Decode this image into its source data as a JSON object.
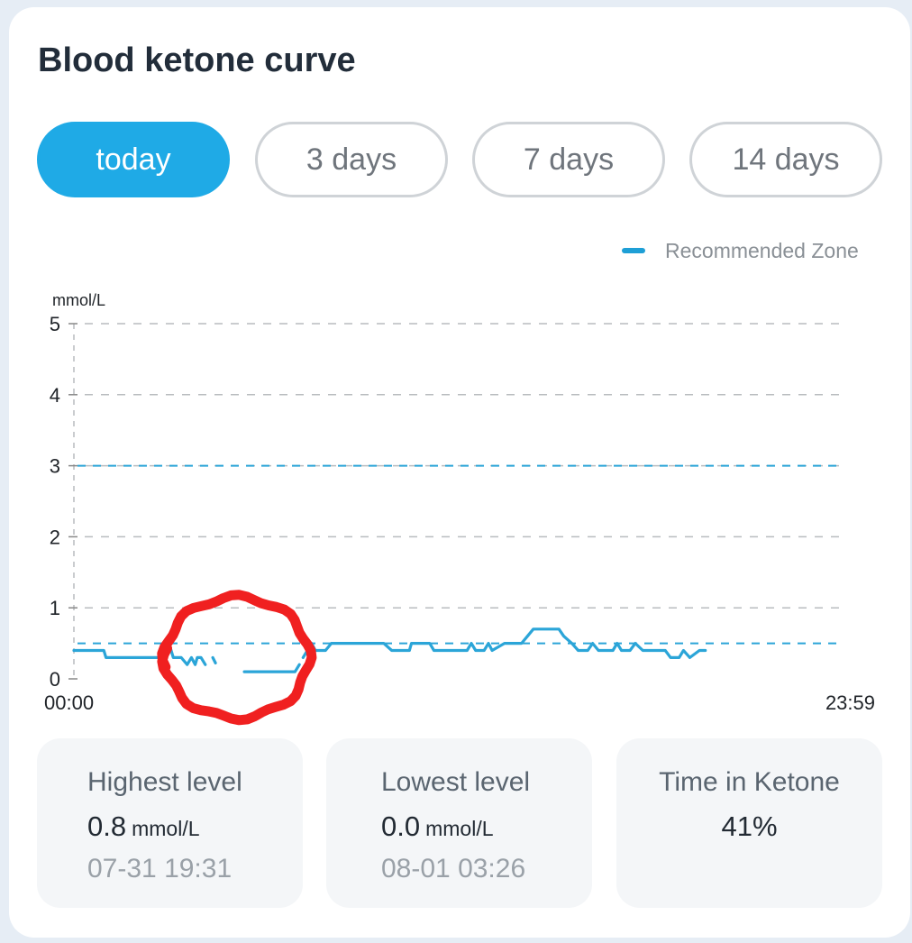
{
  "header": {
    "title": "Blood ketone curve"
  },
  "range_tabs": [
    {
      "label": "today",
      "active": true
    },
    {
      "label": "3 days",
      "active": false
    },
    {
      "label": "7 days",
      "active": false
    },
    {
      "label": "14 days",
      "active": false
    }
  ],
  "legend": {
    "label": "Recommended Zone",
    "color": "#1e9fd6"
  },
  "chart_data": {
    "type": "line",
    "ylabel": "mmol/L",
    "ylim": [
      0,
      5
    ],
    "yticks": [
      "0",
      "1",
      "2",
      "3",
      "4",
      "5"
    ],
    "xlim": [
      "00:00",
      "23:59"
    ],
    "xticks": [
      "00:00",
      "23:59"
    ],
    "grid": true,
    "recommended_zone": [
      0.5,
      3
    ],
    "line_color": "#2ba5d8",
    "annotation": {
      "type": "hand-drawn circle",
      "color": "#f02020"
    },
    "series": [
      {
        "segments": [
          [
            [
              "00:00",
              0.4
            ],
            [
              "00:56",
              0.4
            ],
            [
              "01:00",
              0.3
            ],
            [
              "02:39",
              0.3
            ],
            [
              "02:43",
              0.4
            ],
            [
              "02:58",
              0.5
            ],
            [
              "03:06",
              0.3
            ],
            [
              "03:21",
              0.3
            ],
            [
              "03:32",
              0.2
            ],
            [
              "03:40",
              0.3
            ],
            [
              "03:47",
              0.2
            ],
            [
              "03:51",
              0.3
            ],
            [
              "03:58",
              0.3
            ],
            [
              "04:06",
              0.2
            ]
          ],
          [
            [
              "04:20",
              0.3
            ]
          ],
          [
            [
              "05:19",
              0.1
            ],
            [
              "06:31",
              0.1
            ],
            [
              "06:54",
              0.1
            ],
            [
              "07:02",
              0.2
            ]
          ],
          [
            [
              "07:09",
              0.3
            ],
            [
              "07:25",
              0.5
            ],
            [
              "07:32",
              0.4
            ],
            [
              "07:51",
              0.4
            ],
            [
              "08:02",
              0.5
            ],
            [
              "09:12",
              0.5
            ],
            [
              "09:40",
              0.5
            ],
            [
              "09:55",
              0.4
            ],
            [
              "10:28",
              0.4
            ],
            [
              "10:32",
              0.5
            ],
            [
              "11:06",
              0.5
            ],
            [
              "11:14",
              0.4
            ],
            [
              "12:16",
              0.4
            ],
            [
              "12:24",
              0.5
            ],
            [
              "12:32",
              0.4
            ],
            [
              "12:48",
              0.4
            ],
            [
              "12:56",
              0.5
            ],
            [
              "13:03",
              0.4
            ],
            [
              "13:26",
              0.5
            ],
            [
              "13:58",
              0.5
            ],
            [
              "14:09",
              0.6
            ],
            [
              "14:20",
              0.7
            ],
            [
              "15:08",
              0.7
            ],
            [
              "15:17",
              0.6
            ],
            [
              "15:32",
              0.5
            ],
            [
              "15:44",
              0.4
            ],
            [
              "16:02",
              0.4
            ],
            [
              "16:11",
              0.5
            ],
            [
              "16:22",
              0.4
            ],
            [
              "16:49",
              0.4
            ],
            [
              "16:57",
              0.5
            ],
            [
              "17:05",
              0.4
            ],
            [
              "17:21",
              0.4
            ],
            [
              "17:31",
              0.5
            ],
            [
              "17:45",
              0.4
            ],
            [
              "18:27",
              0.4
            ],
            [
              "18:37",
              0.3
            ],
            [
              "18:53",
              0.3
            ],
            [
              "19:01",
              0.4
            ],
            [
              "19:13",
              0.3
            ],
            [
              "19:31",
              0.4
            ],
            [
              "19:42",
              0.4
            ]
          ]
        ]
      }
    ]
  },
  "stats": {
    "highest": {
      "title": "Highest level",
      "value": "0.8",
      "unit": "mmol/L",
      "time": "07-31 19:31"
    },
    "lowest": {
      "title": "Lowest level",
      "value": "0.0",
      "unit": "mmol/L",
      "time": "08-01 03:26"
    },
    "time_in_ketone": {
      "title": "Time in Ketone",
      "value": "41%"
    }
  }
}
